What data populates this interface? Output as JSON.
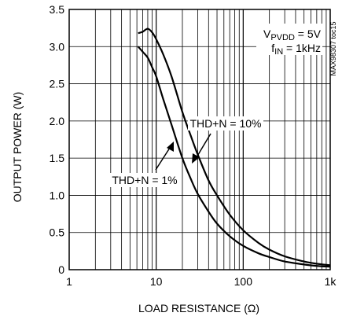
{
  "chart_data": {
    "type": "line",
    "x_scale": "log",
    "xlim": [
      1,
      1000
    ],
    "ylim": [
      0,
      3.5
    ],
    "xlabel": "LOAD RESISTANCE (Ω)",
    "ylabel": "OUTPUT POWER (W)",
    "x_ticks": [
      "1",
      "10",
      "100",
      "1k"
    ],
    "y_ticks": [
      "0",
      "0.5",
      "1.0",
      "1.5",
      "2.0",
      "2.5",
      "3.0",
      "3.5"
    ],
    "grid": true,
    "series": [
      {
        "name": "THD+N = 10%",
        "x": [
          6.2,
          7.0,
          8.0,
          9.0,
          10,
          12,
          15,
          20,
          25,
          30,
          40,
          50,
          70,
          100,
          150,
          200,
          300,
          500,
          700,
          1000
        ],
        "y": [
          3.18,
          3.2,
          3.24,
          3.19,
          3.1,
          2.9,
          2.6,
          2.12,
          1.8,
          1.55,
          1.2,
          1.0,
          0.74,
          0.53,
          0.36,
          0.27,
          0.18,
          0.11,
          0.08,
          0.06
        ]
      },
      {
        "name": "THD+N = 1%",
        "x": [
          6.2,
          7.0,
          8.0,
          9.0,
          10,
          12,
          15,
          20,
          25,
          30,
          40,
          50,
          70,
          100,
          150,
          200,
          300,
          500,
          700,
          1000
        ],
        "y": [
          3.0,
          2.93,
          2.85,
          2.72,
          2.6,
          2.3,
          1.95,
          1.5,
          1.22,
          1.02,
          0.78,
          0.62,
          0.45,
          0.32,
          0.22,
          0.17,
          0.11,
          0.07,
          0.05,
          0.04
        ]
      }
    ]
  },
  "annotations": {
    "vpvdd_main": "V",
    "vpvdd_sub": "PVDD",
    "vpvdd_value": " = 5V",
    "fin_main": "f",
    "fin_sub": "IN",
    "fin_value": " = 1kHz",
    "label_10": "THD+N = 10%",
    "label_1": "THD+N = 1%",
    "figure_id": "MAX98307 toc15"
  }
}
